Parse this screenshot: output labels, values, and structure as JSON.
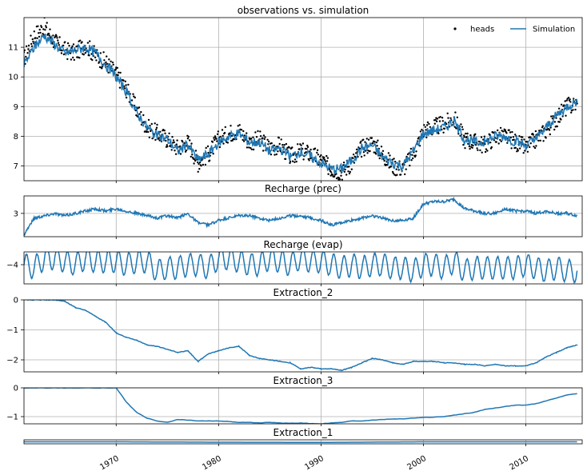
{
  "figure": {
    "x_axis": {
      "ticks": [
        1970,
        1980,
        1990,
        2000,
        2010
      ],
      "tick_labels": [
        "1970",
        "1980",
        "1990",
        "2000",
        "2010"
      ],
      "range": [
        1961.0,
        2015.5
      ]
    },
    "colors": {
      "simulation": "#1f77b4",
      "observations": "#000000",
      "grid": "#b0b0b0"
    }
  },
  "chart_data": [
    {
      "type": "scatter",
      "title": "observations vs. simulation",
      "legend": {
        "placement": "top-right",
        "entries": [
          "heads",
          "Simulation"
        ]
      },
      "ylim": [
        6.5,
        12.0
      ],
      "y_ticks": [
        7,
        8,
        9,
        10,
        11
      ],
      "grid": true,
      "series": [
        {
          "name": "heads",
          "kind": "scatter",
          "x": [
            1961.0,
            1962.0,
            1963.0,
            1964.0,
            1965.0,
            1966.0,
            1967.0,
            1968.0,
            1969.0,
            1970.0,
            1971.0,
            1972.0,
            1973.0,
            1974.0,
            1975.0,
            1976.0,
            1977.0,
            1978.0,
            1979.0,
            1980.0,
            1981.0,
            1982.0,
            1983.0,
            1984.0,
            1985.0,
            1986.0,
            1987.0,
            1988.0,
            1989.0,
            1990.0,
            1991.0,
            1992.0,
            1993.0,
            1994.0,
            1995.0,
            1996.0,
            1997.0,
            1998.0,
            1999.0,
            2000.0,
            2001.0,
            2002.0,
            2003.0,
            2004.0,
            2005.0,
            2006.0,
            2007.0,
            2008.0,
            2009.0,
            2010.0,
            2011.0,
            2012.0,
            2013.0,
            2014.0,
            2015.0
          ],
          "y": [
            10.6,
            11.4,
            11.7,
            11.2,
            10.9,
            10.8,
            11.1,
            10.7,
            10.5,
            10.1,
            9.6,
            8.9,
            8.3,
            8.1,
            7.9,
            7.6,
            7.8,
            7.1,
            7.4,
            7.9,
            8.1,
            8.2,
            7.8,
            7.9,
            7.6,
            7.7,
            7.3,
            7.5,
            7.4,
            7.2,
            6.9,
            6.8,
            7.1,
            7.6,
            7.8,
            7.4,
            7.0,
            6.9,
            7.4,
            8.2,
            8.3,
            8.4,
            8.6,
            7.9,
            7.8,
            7.7,
            8.0,
            8.0,
            7.8,
            7.6,
            7.9,
            8.2,
            8.6,
            9.0,
            9.1
          ]
        },
        {
          "name": "Simulation",
          "kind": "line",
          "x": [
            1961.0,
            1962.0,
            1963.0,
            1964.0,
            1965.0,
            1966.0,
            1967.0,
            1968.0,
            1969.0,
            1970.0,
            1971.0,
            1972.0,
            1973.0,
            1974.0,
            1975.0,
            1976.0,
            1977.0,
            1978.0,
            1979.0,
            1980.0,
            1981.0,
            1982.0,
            1983.0,
            1984.0,
            1985.0,
            1986.0,
            1987.0,
            1988.0,
            1989.0,
            1990.0,
            1991.0,
            1992.0,
            1993.0,
            1994.0,
            1995.0,
            1996.0,
            1997.0,
            1998.0,
            1999.0,
            2000.0,
            2001.0,
            2002.0,
            2003.0,
            2004.0,
            2005.0,
            2006.0,
            2007.0,
            2008.0,
            2009.0,
            2010.0,
            2011.0,
            2012.0,
            2013.0,
            2014.0,
            2015.0
          ],
          "y": [
            10.4,
            11.0,
            11.4,
            11.1,
            10.8,
            10.9,
            11.0,
            10.8,
            10.4,
            10.0,
            9.5,
            8.8,
            8.3,
            8.0,
            7.9,
            7.5,
            7.7,
            7.2,
            7.4,
            7.8,
            8.0,
            8.1,
            7.8,
            7.8,
            7.5,
            7.6,
            7.3,
            7.5,
            7.3,
            7.1,
            6.9,
            6.9,
            7.2,
            7.6,
            7.7,
            7.3,
            7.1,
            7.0,
            7.5,
            8.1,
            8.2,
            8.3,
            8.5,
            7.9,
            7.8,
            7.8,
            8.0,
            8.0,
            7.8,
            7.7,
            7.9,
            8.3,
            8.7,
            9.0,
            9.2
          ]
        }
      ]
    },
    {
      "type": "line",
      "title": "Recharge (prec)",
      "ylim": [
        2.0,
        3.75
      ],
      "y_ticks": [
        3
      ],
      "grid": true,
      "series": [
        {
          "x": [
            1961.0,
            1962.0,
            1963.0,
            1964.0,
            1965.0,
            1966.0,
            1967.0,
            1968.0,
            1969.0,
            1970.0,
            1971.0,
            1972.0,
            1973.0,
            1974.0,
            1975.0,
            1976.0,
            1977.0,
            1978.0,
            1979.0,
            1980.0,
            1981.0,
            1982.0,
            1983.0,
            1984.0,
            1985.0,
            1986.0,
            1987.0,
            1988.0,
            1989.0,
            1990.0,
            1991.0,
            1992.0,
            1993.0,
            1994.0,
            1995.0,
            1996.0,
            1997.0,
            1998.0,
            1999.0,
            2000.0,
            2001.0,
            2002.0,
            2003.0,
            2004.0,
            2005.0,
            2006.0,
            2007.0,
            2008.0,
            2009.0,
            2010.0,
            2011.0,
            2012.0,
            2013.0,
            2014.0,
            2015.0
          ],
          "y": [
            2.1,
            2.8,
            2.9,
            3.0,
            2.9,
            3.0,
            3.1,
            3.2,
            3.1,
            3.2,
            3.1,
            3.0,
            2.9,
            2.8,
            2.9,
            2.8,
            3.0,
            2.6,
            2.5,
            2.7,
            2.8,
            2.9,
            2.9,
            2.8,
            2.7,
            2.8,
            2.9,
            2.9,
            2.8,
            2.7,
            2.5,
            2.6,
            2.7,
            2.8,
            2.9,
            2.8,
            2.7,
            2.7,
            2.8,
            3.4,
            3.5,
            3.5,
            3.6,
            3.2,
            3.1,
            3.0,
            3.0,
            3.2,
            3.1,
            3.1,
            3.0,
            3.1,
            3.0,
            3.0,
            2.9
          ]
        }
      ]
    },
    {
      "type": "line",
      "title": "Recharge (evap)",
      "ylim": [
        -4.6,
        -3.6
      ],
      "y_ticks": [
        -4
      ],
      "grid": true,
      "series": [
        {
          "x": [
            1961.0,
            1962.0,
            1963.0,
            1964.0,
            1965.0,
            1966.0,
            1967.0,
            1968.0,
            1969.0,
            1970.0,
            1971.0,
            1972.0,
            1973.0,
            1974.0,
            1975.0,
            1976.0,
            1977.0,
            1978.0,
            1979.0,
            1980.0,
            1981.0,
            1982.0,
            1983.0,
            1984.0,
            1985.0,
            1986.0,
            1987.0,
            1988.0,
            1989.0,
            1990.0,
            1991.0,
            1992.0,
            1993.0,
            1994.0,
            1995.0,
            1996.0,
            1997.0,
            1998.0,
            1999.0,
            2000.0,
            2001.0,
            2002.0,
            2003.0,
            2004.0,
            2005.0,
            2006.0,
            2007.0,
            2008.0,
            2009.0,
            2010.0,
            2011.0,
            2012.0,
            2013.0,
            2014.0,
            2015.0
          ],
          "y": [
            -4.0,
            -4.1,
            -3.8,
            -3.8,
            -3.9,
            -4.0,
            -3.8,
            -3.9,
            -3.9,
            -3.9,
            -4.0,
            -3.9,
            -3.9,
            -4.2,
            -4.1,
            -4.1,
            -4.0,
            -4.0,
            -4.1,
            -3.8,
            -3.8,
            -3.9,
            -4.0,
            -4.0,
            -3.8,
            -3.9,
            -4.0,
            -3.8,
            -3.9,
            -3.9,
            -4.0,
            -4.1,
            -4.0,
            -4.1,
            -4.0,
            -4.0,
            -4.1,
            -4.1,
            -4.2,
            -4.0,
            -4.0,
            -4.1,
            -3.9,
            -4.2,
            -4.1,
            -4.1,
            -4.1,
            -4.1,
            -4.1,
            -4.0,
            -4.1,
            -4.2,
            -4.1,
            -4.2,
            -4.2
          ],
          "seasonal_amplitude": 0.35,
          "period_years": 1
        }
      ]
    },
    {
      "type": "line",
      "title": "Extraction_2",
      "ylim": [
        -2.4,
        0.0
      ],
      "y_ticks": [
        0,
        -1,
        -2
      ],
      "grid": true,
      "series": [
        {
          "x": [
            1961.0,
            1962.0,
            1963.0,
            1964.0,
            1965.0,
            1966.0,
            1967.0,
            1968.0,
            1969.0,
            1970.0,
            1971.0,
            1972.0,
            1973.0,
            1974.0,
            1975.0,
            1976.0,
            1977.0,
            1978.0,
            1979.0,
            1980.0,
            1981.0,
            1982.0,
            1983.0,
            1984.0,
            1985.0,
            1986.0,
            1987.0,
            1988.0,
            1989.0,
            1990.0,
            1991.0,
            1992.0,
            1993.0,
            1994.0,
            1995.0,
            1996.0,
            1997.0,
            1998.0,
            1999.0,
            2000.0,
            2001.0,
            2002.0,
            2003.0,
            2004.0,
            2005.0,
            2006.0,
            2007.0,
            2008.0,
            2009.0,
            2010.0,
            2011.0,
            2012.0,
            2013.0,
            2014.0,
            2015.0
          ],
          "y": [
            0.0,
            0.0,
            0.0,
            0.0,
            -0.05,
            -0.25,
            -0.35,
            -0.55,
            -0.75,
            -1.1,
            -1.25,
            -1.35,
            -1.5,
            -1.55,
            -1.65,
            -1.75,
            -1.7,
            -2.05,
            -1.8,
            -1.7,
            -1.6,
            -1.55,
            -1.85,
            -1.95,
            -2.0,
            -2.05,
            -2.1,
            -2.3,
            -2.25,
            -2.3,
            -2.3,
            -2.35,
            -2.25,
            -2.1,
            -1.95,
            -2.0,
            -2.1,
            -2.15,
            -2.05,
            -2.05,
            -2.05,
            -2.1,
            -2.1,
            -2.15,
            -2.15,
            -2.2,
            -2.15,
            -2.2,
            -2.2,
            -2.2,
            -2.1,
            -1.9,
            -1.75,
            -1.6,
            -1.5
          ]
        }
      ]
    },
    {
      "type": "line",
      "title": "Extraction_3",
      "ylim": [
        -1.25,
        0.0
      ],
      "y_ticks": [
        0,
        -1
      ],
      "grid": true,
      "series": [
        {
          "x": [
            1961.0,
            1962.0,
            1963.0,
            1964.0,
            1965.0,
            1966.0,
            1967.0,
            1968.0,
            1969.0,
            1970.0,
            1971.0,
            1972.0,
            1973.0,
            1974.0,
            1975.0,
            1976.0,
            1977.0,
            1978.0,
            1979.0,
            1980.0,
            1981.0,
            1982.0,
            1983.0,
            1984.0,
            1985.0,
            1986.0,
            1987.0,
            1988.0,
            1989.0,
            1990.0,
            1991.0,
            1992.0,
            1993.0,
            1994.0,
            1995.0,
            1996.0,
            1997.0,
            1998.0,
            1999.0,
            2000.0,
            2001.0,
            2002.0,
            2003.0,
            2004.0,
            2005.0,
            2006.0,
            2007.0,
            2008.0,
            2009.0,
            2010.0,
            2011.0,
            2012.0,
            2013.0,
            2014.0,
            2015.0
          ],
          "y": [
            0.0,
            0.0,
            0.0,
            0.0,
            0.0,
            0.0,
            0.0,
            0.0,
            0.0,
            0.0,
            -0.5,
            -0.85,
            -1.05,
            -1.15,
            -1.2,
            -1.1,
            -1.12,
            -1.15,
            -1.15,
            -1.15,
            -1.17,
            -1.2,
            -1.2,
            -1.22,
            -1.2,
            -1.22,
            -1.23,
            -1.22,
            -1.24,
            -1.25,
            -1.22,
            -1.2,
            -1.15,
            -1.15,
            -1.12,
            -1.1,
            -1.08,
            -1.08,
            -1.05,
            -1.03,
            -1.02,
            -1.0,
            -0.95,
            -0.9,
            -0.85,
            -0.75,
            -0.7,
            -0.65,
            -0.6,
            -0.6,
            -0.55,
            -0.45,
            -0.35,
            -0.25,
            -0.2
          ]
        }
      ]
    },
    {
      "type": "line",
      "title": "Extraction_1",
      "ylim": [
        -0.1,
        0.1
      ],
      "y_ticks": [],
      "grid": true,
      "series": [
        {
          "x": [
            1961.0,
            1970.0,
            1980.0,
            1990.0,
            2000.0,
            2010.0,
            2015.0
          ],
          "y": [
            0.0,
            0.0,
            -0.02,
            -0.03,
            0.0,
            0.0,
            0.0
          ]
        }
      ]
    }
  ]
}
